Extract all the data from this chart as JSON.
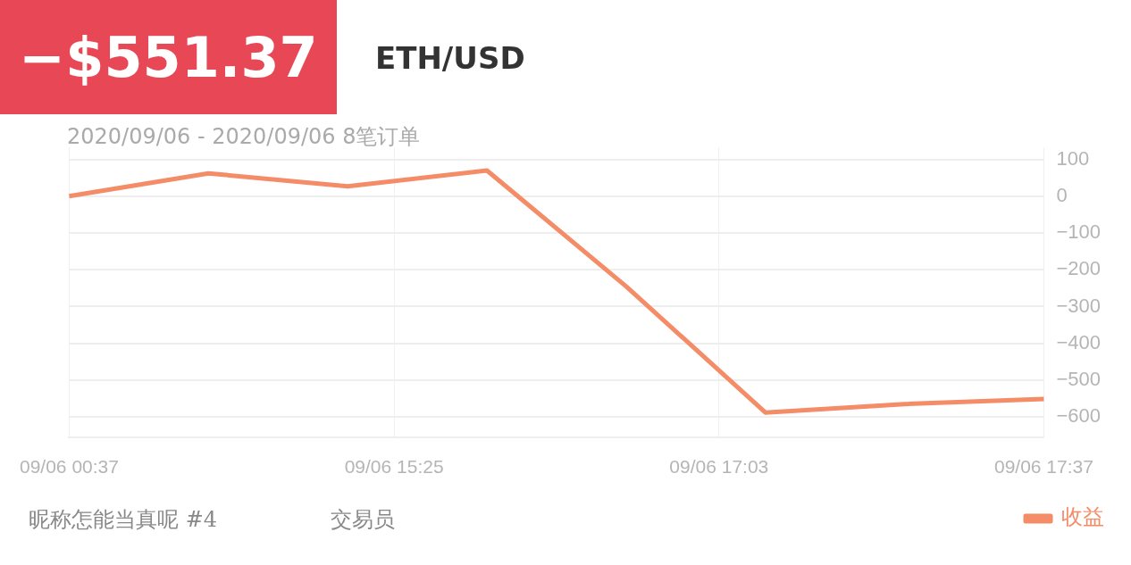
{
  "chart_data": {
    "type": "line",
    "title": "−$551.37",
    "subtitle": "ETH/USD",
    "annotations": [
      "2020/09/06 - 2020/09/06  8笔订单",
      "昵称怎能当真呢 #4",
      "交易员"
    ],
    "categories": [
      "09/06 00:37",
      null,
      null,
      null,
      null,
      null,
      null,
      "09/06 15:25",
      null,
      null,
      null,
      null,
      null,
      null,
      "09/06 17:03",
      null,
      null,
      null,
      null,
      null,
      null,
      "09/06 17:37"
    ],
    "series": [
      {
        "name": "收益",
        "color": "#f48c68",
        "values": [
          0,
          null,
          null,
          62,
          null,
          null,
          27,
          null,
          null,
          70,
          null,
          null,
          -245,
          null,
          null,
          -588,
          null,
          null,
          -565,
          null,
          null,
          -551.37
        ]
      }
    ],
    "ylim": [
      -655,
      133
    ],
    "yticks": [
      100,
      0,
      -100,
      -200,
      -300,
      -400,
      -500,
      -600
    ],
    "grid": true,
    "legend": "bottom right",
    "marker": "none"
  }
}
